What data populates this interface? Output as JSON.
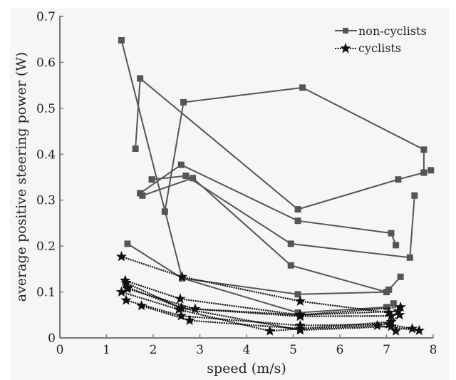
{
  "chart_data": {
    "type": "line",
    "title": "",
    "xlabel": "speed (m/s)",
    "ylabel": "average positive steering power (W)",
    "xlim": [
      0,
      8
    ],
    "ylim": [
      0,
      0.7
    ],
    "xticks": [
      0,
      1,
      2,
      3,
      4,
      5,
      6,
      7,
      8
    ],
    "yticks": [
      0,
      0.1,
      0.2,
      0.3,
      0.4,
      0.5,
      0.6,
      0.7
    ],
    "xtick_labels": [
      "0",
      "1",
      "2",
      "3",
      "4",
      "5",
      "6",
      "7",
      "8"
    ],
    "ytick_labels": [
      "0",
      "0.1",
      "0.2",
      "0.3",
      "0.4",
      "0.5",
      "0.6",
      "0.7"
    ],
    "grid": false,
    "legend_position": "top-right",
    "legend": [
      {
        "label": "non-cyclists",
        "marker": "square",
        "style": "solid",
        "color": "#555555"
      },
      {
        "label": "cyclists",
        "marker": "star",
        "style": "dotted",
        "color": "#111111"
      }
    ],
    "series": [
      {
        "name": "non-cyclists",
        "group": "non-cyclists",
        "points": [
          [
            1.32,
            0.648
          ],
          [
            2.62,
            0.13
          ],
          [
            5.1,
            0.095
          ],
          [
            7.0,
            0.1
          ]
        ]
      },
      {
        "name": "non-cyclists",
        "group": "non-cyclists",
        "points": [
          [
            1.62,
            0.412
          ],
          [
            1.72,
            0.565
          ],
          [
            5.1,
            0.28
          ],
          [
            7.25,
            0.345
          ],
          [
            7.8,
            0.36
          ]
        ]
      },
      {
        "name": "non-cyclists",
        "group": "non-cyclists",
        "points": [
          [
            2.25,
            0.275
          ],
          [
            2.65,
            0.513
          ],
          [
            5.2,
            0.545
          ],
          [
            7.8,
            0.41
          ],
          [
            7.8,
            0.36
          ]
        ]
      },
      {
        "name": "non-cyclists",
        "group": "non-cyclists",
        "points": [
          [
            7.95,
            0.365
          ]
        ]
      },
      {
        "name": "non-cyclists",
        "group": "non-cyclists",
        "points": [
          [
            1.72,
            0.315
          ],
          [
            2.6,
            0.377
          ],
          [
            5.1,
            0.255
          ],
          [
            7.1,
            0.228
          ],
          [
            7.2,
            0.202
          ]
        ]
      },
      {
        "name": "non-cyclists",
        "group": "non-cyclists",
        "points": [
          [
            1.97,
            0.345
          ],
          [
            2.7,
            0.353
          ],
          [
            4.95,
            0.205
          ],
          [
            7.5,
            0.175
          ],
          [
            7.6,
            0.31
          ]
        ]
      },
      {
        "name": "non-cyclists",
        "group": "non-cyclists",
        "points": [
          [
            1.77,
            0.31
          ],
          [
            2.85,
            0.348
          ],
          [
            4.95,
            0.158
          ],
          [
            7.0,
            0.1
          ],
          [
            7.05,
            0.105
          ],
          [
            7.3,
            0.133
          ]
        ]
      },
      {
        "name": "non-cyclists",
        "group": "non-cyclists",
        "points": [
          [
            1.45,
            0.205
          ],
          [
            2.62,
            0.13
          ],
          [
            5.1,
            0.055
          ],
          [
            7.0,
            0.067
          ],
          [
            7.15,
            0.075
          ]
        ]
      },
      {
        "name": "cyclists",
        "group": "cyclists",
        "points": [
          [
            1.32,
            0.177
          ],
          [
            2.62,
            0.133
          ],
          [
            5.15,
            0.08
          ],
          [
            7.05,
            0.055
          ]
        ]
      },
      {
        "name": "cyclists",
        "group": "cyclists",
        "points": [
          [
            1.4,
            0.125
          ],
          [
            2.58,
            0.085
          ],
          [
            5.15,
            0.05
          ],
          [
            7.3,
            0.067
          ]
        ]
      },
      {
        "name": "cyclists",
        "group": "cyclists",
        "points": [
          [
            1.42,
            0.12
          ],
          [
            2.6,
            0.065
          ],
          [
            5.15,
            0.047
          ],
          [
            7.1,
            0.048
          ]
        ]
      },
      {
        "name": "cyclists",
        "group": "cyclists",
        "points": [
          [
            1.45,
            0.107
          ],
          [
            2.9,
            0.063
          ],
          [
            5.15,
            0.05
          ],
          [
            7.25,
            0.058
          ]
        ]
      },
      {
        "name": "cyclists",
        "group": "cyclists",
        "points": [
          [
            1.32,
            0.1
          ],
          [
            2.55,
            0.062
          ],
          [
            4.5,
            0.015
          ],
          [
            7.1,
            0.035
          ],
          [
            7.28,
            0.05
          ]
        ]
      },
      {
        "name": "cyclists",
        "group": "cyclists",
        "points": [
          [
            1.42,
            0.082
          ],
          [
            2.6,
            0.048
          ],
          [
            5.15,
            0.027
          ],
          [
            7.05,
            0.03
          ],
          [
            7.55,
            0.02
          ]
        ]
      },
      {
        "name": "cyclists",
        "group": "cyclists",
        "points": [
          [
            1.75,
            0.07
          ],
          [
            2.78,
            0.038
          ],
          [
            5.15,
            0.02
          ],
          [
            6.8,
            0.027
          ],
          [
            7.7,
            0.016
          ]
        ]
      },
      {
        "name": "cyclists",
        "group": "cyclists",
        "points": [
          [
            1.45,
            0.11
          ],
          [
            2.6,
            0.065
          ],
          [
            5.15,
            0.017
          ],
          [
            7.1,
            0.025
          ],
          [
            7.2,
            0.015
          ]
        ]
      }
    ]
  }
}
